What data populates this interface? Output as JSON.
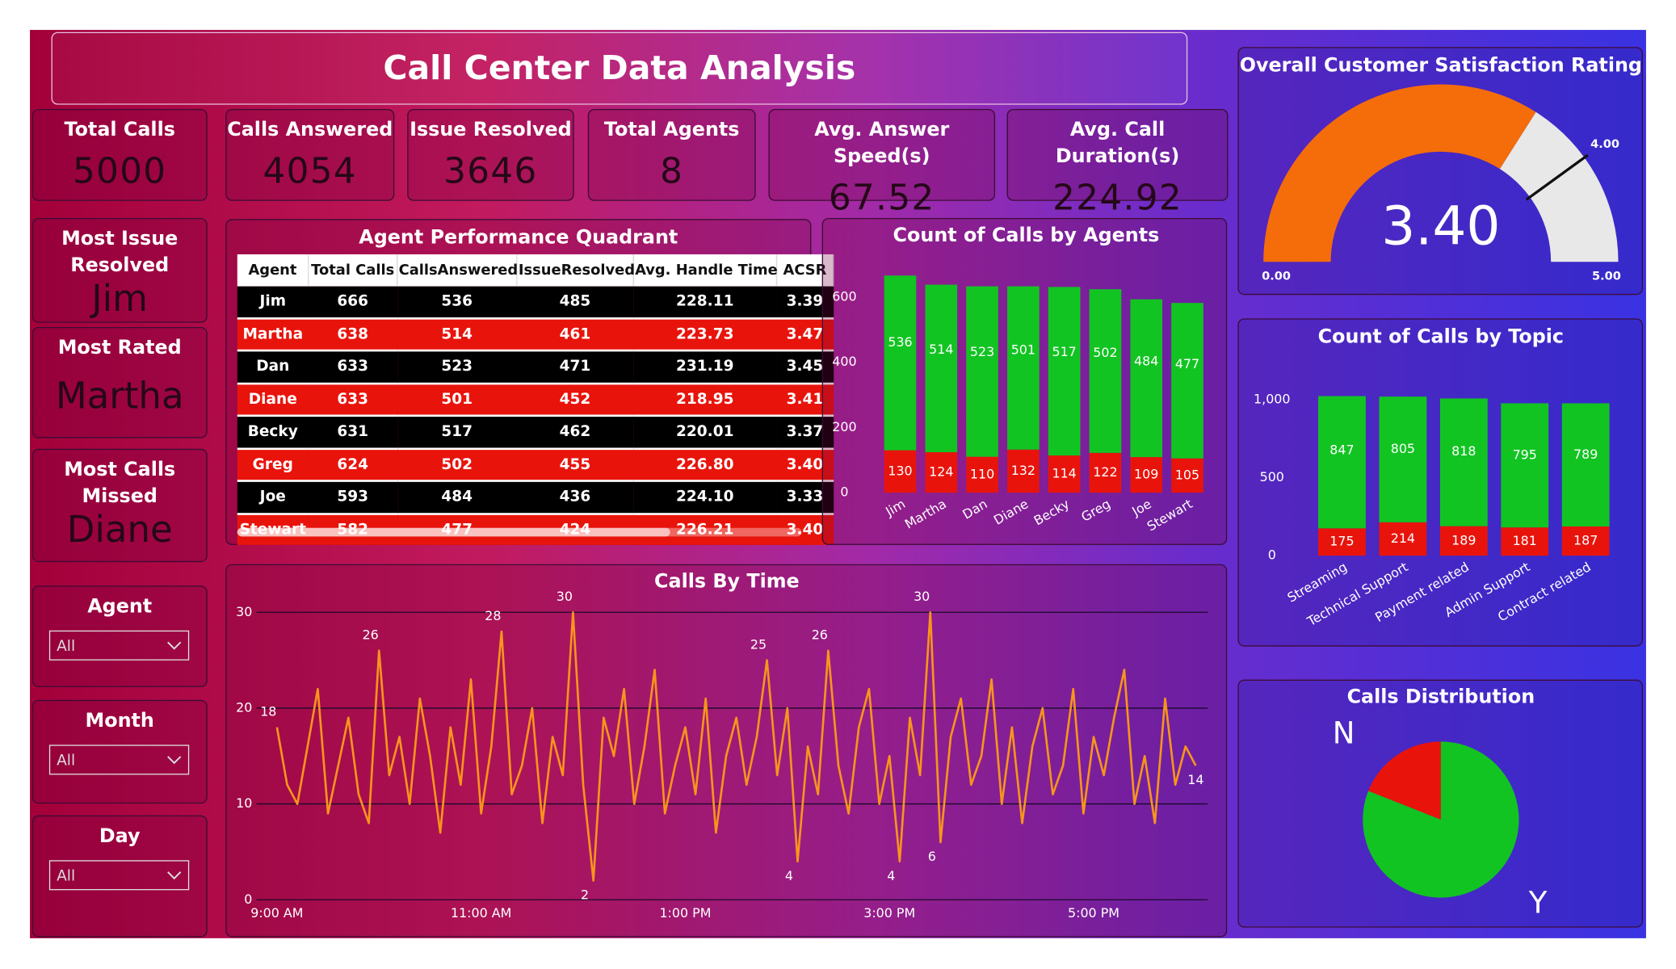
{
  "header": {
    "title": "Call Center Data Analysis"
  },
  "kpis": [
    {
      "label": "Total Calls",
      "value": 5000
    },
    {
      "label": "Calls Answered",
      "value": 4054
    },
    {
      "label": "Issue Resolved",
      "value": 3646
    },
    {
      "label": "Total Agents",
      "value": 8
    },
    {
      "label": "Avg. Answer Speed(s)",
      "value": 67.52
    },
    {
      "label": "Avg. Call Duration(s)",
      "value": 224.92
    }
  ],
  "highlights": [
    {
      "label": "Most Issue Resolved",
      "value": "Jim"
    },
    {
      "label": "Most Rated",
      "value": "Martha"
    },
    {
      "label": "Most Calls Missed",
      "value": "Diane"
    }
  ],
  "filters": [
    {
      "label": "Agent",
      "value": "All"
    },
    {
      "label": "Month",
      "value": "All"
    },
    {
      "label": "Day",
      "value": "All"
    }
  ],
  "table": {
    "title": "Agent Performance Quadrant",
    "columns": [
      "Agent",
      "Total Calls",
      "CallsAnswered",
      "IssueResolved",
      "Avg. Handle Time",
      "ACSR"
    ],
    "rows": [
      [
        "Jim",
        666,
        536,
        485,
        "228.11",
        "3.39"
      ],
      [
        "Martha",
        638,
        514,
        461,
        "223.73",
        "3.47"
      ],
      [
        "Dan",
        633,
        523,
        471,
        "231.19",
        "3.45"
      ],
      [
        "Diane",
        633,
        501,
        452,
        "218.95",
        "3.41"
      ],
      [
        "Becky",
        631,
        517,
        462,
        "220.01",
        "3.37"
      ],
      [
        "Greg",
        624,
        502,
        455,
        "226.80",
        "3.40"
      ],
      [
        "Joe",
        593,
        484,
        436,
        "224.10",
        "3.33"
      ],
      [
        "Stewart",
        582,
        477,
        424,
        "226.21",
        "3.40"
      ]
    ]
  },
  "chart_data": [
    {
      "type": "gauge",
      "title": "Overall Customer Satisfaction Rating",
      "value": 3.4,
      "value_label": "3.40",
      "min": {
        "value": 0,
        "label": "0.00"
      },
      "max": {
        "value": 5,
        "label": "5.00"
      },
      "target": {
        "value": 4,
        "label": "4.00"
      },
      "color": "#f56c0a",
      "track_color": "#e8e8e8"
    },
    {
      "type": "stacked_bar",
      "title": "Count of Calls by Agents",
      "categories": [
        "Jim",
        "Martha",
        "Dan",
        "Diane",
        "Becky",
        "Greg",
        "Joe",
        "Stewart"
      ],
      "series": [
        {
          "color": "#e8140c",
          "values": [
            130,
            124,
            110,
            132,
            114,
            122,
            109,
            105
          ]
        },
        {
          "color": "#12c422",
          "values": [
            536,
            514,
            523,
            501,
            517,
            502,
            484,
            477
          ]
        }
      ],
      "ylim": [
        0,
        700
      ],
      "yticks": [
        0,
        200,
        400,
        600
      ]
    },
    {
      "type": "stacked_bar",
      "title": "Count of Calls by Topic",
      "categories": [
        "Streaming",
        "Technical Support",
        "Payment related",
        "Admin Support",
        "Contract related"
      ],
      "series": [
        {
          "color": "#e8140c",
          "values": [
            175,
            214,
            189,
            181,
            187
          ]
        },
        {
          "color": "#12c422",
          "values": [
            847,
            805,
            818,
            795,
            789
          ]
        }
      ],
      "ylim": [
        0,
        1150
      ],
      "yticks": [
        0,
        500,
        {
          "value": 1000,
          "label": "1,000"
        }
      ]
    },
    {
      "type": "line",
      "title": "Calls By Time",
      "color": "#f7941d",
      "x": [
        9,
        9.1,
        9.2,
        9.3,
        9.4,
        9.5,
        9.6,
        9.7,
        9.8,
        9.9,
        10,
        10.1,
        10.2,
        10.3,
        10.4,
        10.5,
        10.6,
        10.7,
        10.8,
        10.9,
        11,
        11.1,
        11.2,
        11.3,
        11.4,
        11.5,
        11.6,
        11.7,
        11.8,
        11.9,
        12,
        12.1,
        12.2,
        12.3,
        12.4,
        12.5,
        12.6,
        12.7,
        12.8,
        12.9,
        13,
        13.1,
        13.2,
        13.3,
        13.4,
        13.5,
        13.6,
        13.7,
        13.8,
        13.9,
        14,
        14.1,
        14.2,
        14.3,
        14.4,
        14.5,
        14.6,
        14.7,
        14.8,
        14.9,
        15,
        15.1,
        15.2,
        15.3,
        15.4,
        15.5,
        15.6,
        15.7,
        15.8,
        15.9,
        16,
        16.1,
        16.2,
        16.3,
        16.4,
        16.5,
        16.6,
        16.7,
        16.8,
        16.9,
        17,
        17.1,
        17.2,
        17.3,
        17.4,
        17.5,
        17.6,
        17.7,
        17.8,
        17.9,
        18
      ],
      "values": [
        18,
        12,
        10,
        16,
        22,
        9,
        14,
        19,
        11,
        8,
        26,
        13,
        17,
        10,
        21,
        15,
        7,
        18,
        12,
        23,
        9,
        16,
        28,
        11,
        14,
        20,
        8,
        17,
        13,
        30,
        12,
        2,
        19,
        15,
        22,
        10,
        16,
        24,
        9,
        14,
        18,
        11,
        21,
        7,
        15,
        19,
        12,
        17,
        25,
        13,
        20,
        4,
        16,
        11,
        26,
        14,
        9,
        18,
        22,
        10,
        15,
        4,
        19,
        13,
        30,
        6,
        17,
        21,
        12,
        15,
        23,
        10,
        18,
        8,
        16,
        20,
        11,
        14,
        22,
        9,
        17,
        13,
        19,
        24,
        10,
        15,
        8,
        21,
        12,
        16,
        14
      ],
      "value_labels": [
        "18",
        null,
        null,
        null,
        null,
        null,
        null,
        null,
        null,
        null,
        "26",
        null,
        null,
        null,
        null,
        null,
        null,
        null,
        null,
        null,
        null,
        null,
        "28",
        null,
        null,
        null,
        null,
        null,
        null,
        "30",
        null,
        "2",
        null,
        null,
        null,
        null,
        null,
        null,
        null,
        null,
        null,
        null,
        null,
        null,
        null,
        null,
        null,
        null,
        "25",
        null,
        null,
        "4",
        null,
        null,
        "26",
        null,
        null,
        null,
        null,
        null,
        null,
        "4",
        null,
        null,
        "30",
        "6",
        null,
        null,
        null,
        null,
        null,
        null,
        null,
        null,
        null,
        null,
        null,
        null,
        null,
        null,
        null,
        null,
        null,
        null,
        null,
        null,
        null,
        null,
        null,
        null,
        "14"
      ],
      "xlim": [
        8.8,
        18.15
      ],
      "xticks": [
        {
          "value": 9,
          "label": "9:00 AM"
        },
        {
          "value": 11,
          "label": "11:00 AM"
        },
        {
          "value": 13,
          "label": "1:00 PM"
        },
        {
          "value": 15,
          "label": "3:00 PM"
        },
        {
          "value": 17,
          "label": "5:00 PM"
        }
      ],
      "ylim": [
        0,
        30
      ],
      "yticks": [
        0,
        10,
        20,
        30
      ],
      "grid": true
    },
    {
      "type": "pie",
      "title": "Calls Distribution",
      "categories": [
        "N",
        "Y"
      ],
      "values": [
        19,
        81
      ],
      "colors": [
        "#e8140c",
        "#12c422"
      ]
    }
  ]
}
